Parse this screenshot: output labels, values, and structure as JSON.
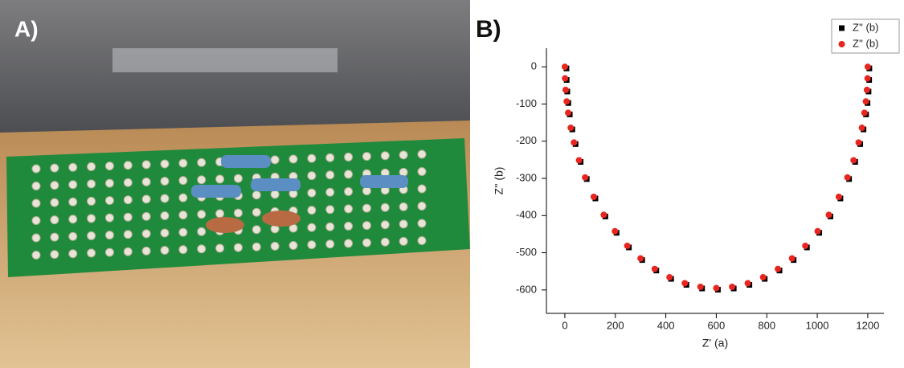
{
  "panels": {
    "a_label": "A)",
    "b_label": "B)"
  },
  "chart_data": {
    "type": "scatter",
    "xlabel": "Z' (a)",
    "ylabel": "Z'' (b)",
    "x": [
      0,
      0.8,
      3.3,
      7.4,
      13.1,
      23.2,
      36.2,
      56.2,
      80.4,
      114.6,
      154.1,
      198.5,
      247.3,
      300,
      356.0,
      414.6,
      475.3,
      537.3,
      600,
      662.7,
      724.7,
      785.4,
      844.0,
      900,
      952.7,
      1001.5,
      1045.9,
      1085.4,
      1119.6,
      1143.8,
      1163.8,
      1176.8,
      1186.9,
      1192.6,
      1196.7,
      1199.2,
      1200
    ],
    "series": [
      {
        "name": "Z'' (b)",
        "color": "#000000",
        "marker": "square",
        "values": [
          0,
          -31.1,
          -62.2,
          -93.1,
          -123.7,
          -164.0,
          -203.5,
          -251.4,
          -297.5,
          -349.7,
          -398.1,
          -442.1,
          -481.4,
          -515.3,
          -543.5,
          -565.9,
          -582.0,
          -591.7,
          -595,
          -591.7,
          -582.0,
          -565.9,
          -543.5,
          -515.3,
          -481.4,
          -442.1,
          -398.1,
          -349.7,
          -297.5,
          -251.4,
          -203.5,
          -164.0,
          -123.7,
          -93.1,
          -62.2,
          -31.1,
          0
        ]
      },
      {
        "name": "Z'' (b)",
        "color": "#e8251f",
        "marker": "circle",
        "values": [
          0,
          -31.1,
          -62.2,
          -93.1,
          -123.7,
          -164.0,
          -203.5,
          -251.4,
          -297.5,
          -349.7,
          -398.1,
          -442.1,
          -481.4,
          -515.3,
          -543.5,
          -565.9,
          -582.0,
          -591.7,
          -595,
          -591.7,
          -582.0,
          -565.9,
          -543.5,
          -515.3,
          -481.4,
          -442.1,
          -398.1,
          -349.7,
          -297.5,
          -251.4,
          -203.5,
          -164.0,
          -123.7,
          -93.1,
          -62.2,
          -31.1,
          0
        ]
      }
    ],
    "xlim": [
      -73,
      1264
    ],
    "ylim": [
      -663,
      50
    ],
    "xticks": [
      0,
      200,
      400,
      600,
      800,
      1000,
      1200
    ],
    "yticks": [
      0,
      -100,
      -200,
      -300,
      -400,
      -500,
      -600
    ],
    "legend": "upper right"
  }
}
